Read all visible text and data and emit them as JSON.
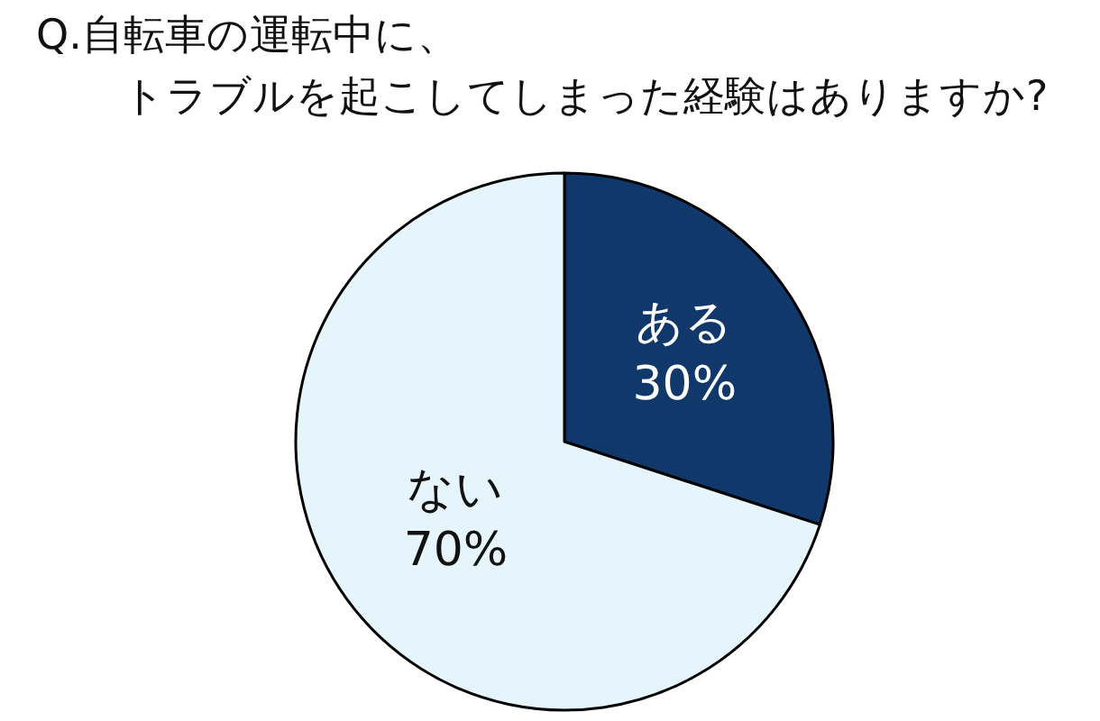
{
  "chart_data": {
    "type": "pie",
    "title": "Q.自転車の運転中に、トラブルを起こしてしまった経験はありますか?",
    "categories": [
      "ある",
      "ない"
    ],
    "values": [
      30,
      70
    ],
    "value_labels": [
      "30%",
      "70%"
    ],
    "colors": [
      "#10386a",
      "#e6f5fc"
    ],
    "legend": false
  }
}
